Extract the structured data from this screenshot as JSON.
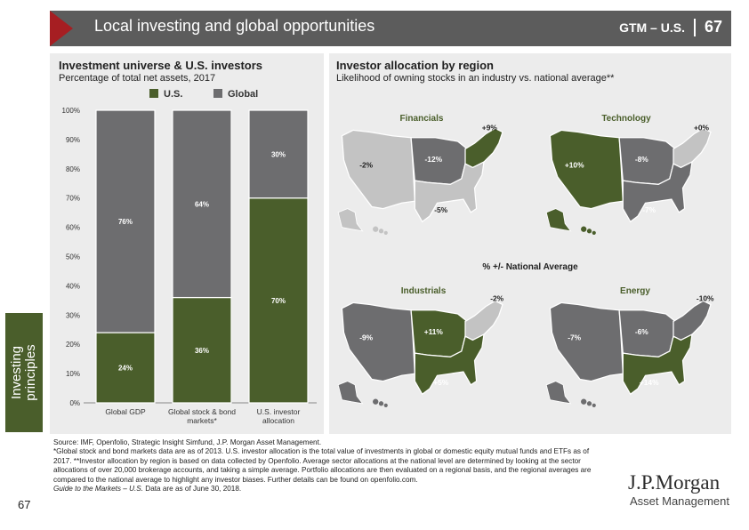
{
  "header": {
    "title": "Local investing and global opportunities",
    "gtm_label": "GTM – U.S.",
    "page_number": "67"
  },
  "side_tab": {
    "label": "Investing principles"
  },
  "colors": {
    "us": "#4a5e2b",
    "global": "#6d6d6f",
    "header": "#5c5c5c",
    "accent": "#a61e22"
  },
  "left_panel": {
    "title": "Investment universe & U.S. investors",
    "subtitle": "Percentage of total net assets, 2017",
    "legend": [
      {
        "label": "U.S.",
        "color": "#4a5e2b"
      },
      {
        "label": "Global",
        "color": "#6d6d6f"
      }
    ]
  },
  "right_panel": {
    "title": "Investor allocation by region",
    "subtitle": "Likelihood of owning stocks in an industry vs. national average**",
    "center_label": "% +/- National Average"
  },
  "chart_data": [
    {
      "type": "bar",
      "stacked": true,
      "categories": [
        "Global GDP",
        "Global stock & bond markets*",
        "U.S. investor allocation"
      ],
      "series": [
        {
          "name": "U.S.",
          "values": [
            24,
            36,
            70
          ],
          "color": "#4a5e2b"
        },
        {
          "name": "Global",
          "values": [
            76,
            64,
            30
          ],
          "color": "#6d6d6f"
        }
      ],
      "data_labels": {
        "U.S.": [
          "24%",
          "36%",
          "70%"
        ],
        "Global": [
          "76%",
          "64%",
          "30%"
        ]
      },
      "ylim": [
        0,
        100
      ],
      "yticks": [
        "0%",
        "10%",
        "20%",
        "30%",
        "40%",
        "50%",
        "60%",
        "70%",
        "80%",
        "90%",
        "100%"
      ]
    },
    {
      "type": "map",
      "regions": [
        "West",
        "Midwest",
        "Northeast",
        "South"
      ],
      "maps": [
        {
          "name": "Financials",
          "values": {
            "West": "-2%",
            "Midwest": "-12%",
            "Northeast": "+9%",
            "South": "-5%"
          }
        },
        {
          "name": "Technology",
          "values": {
            "West": "+10%",
            "Midwest": "-8%",
            "Northeast": "+0%",
            "South": "-7%"
          }
        },
        {
          "name": "Industrials",
          "values": {
            "West": "-9%",
            "Midwest": "+11%",
            "Northeast": "-2%",
            "South": "+5%"
          }
        },
        {
          "name": "Energy",
          "values": {
            "West": "-7%",
            "Midwest": "-6%",
            "Northeast": "-10%",
            "South": "+14%"
          }
        }
      ]
    }
  ],
  "footnotes": {
    "source": "Source: IMF, Openfolio, Strategic Insight Simfund, J.P. Morgan Asset Management.",
    "note1": "*Global stock and bond markets data are as of 2013. U.S. investor allocation is the total value of investments in global or domestic equity mutual funds and ETFs as of 2017. **Investor allocation by region is based on data collected by Openfolio. Average sector allocations at the national level are determined by looking at the sector allocations of over 20,000 brokerage accounts, and taking a simple average. Portfolio allocations are then evaluated on a regional basis, and the regional averages are compared to the national average to highlight any investor biases. Further details can be found on openfolio.com.",
    "guide_title": "Guide to the Markets – U.S.",
    "guide_rest": " Data are as of June 30, 2018."
  },
  "bottom_page_number": "67",
  "logo": {
    "name": "J.P.Morgan",
    "sub": "Asset Management"
  }
}
